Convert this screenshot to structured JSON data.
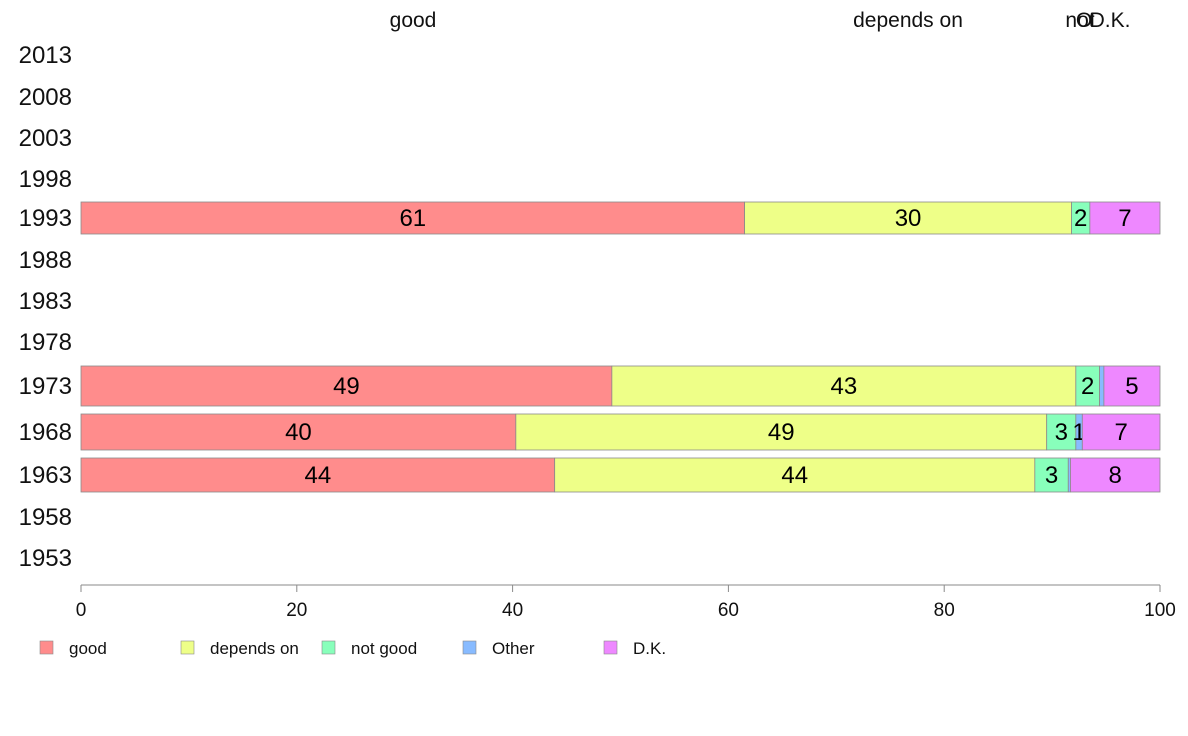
{
  "chart_data": {
    "type": "bar",
    "orientation": "horizontal",
    "stacked": true,
    "years": [
      "2013",
      "2008",
      "2003",
      "1998",
      "1993",
      "1988",
      "1983",
      "1978",
      "1973",
      "1968",
      "1963",
      "1958",
      "1953"
    ],
    "series": [
      {
        "name": "good",
        "color": "#FF8C8C",
        "values": [
          null,
          null,
          null,
          null,
          61.5,
          null,
          null,
          null,
          49.2,
          40.3,
          43.9,
          null,
          null
        ]
      },
      {
        "name": "depends on",
        "color": "#EEFF88",
        "values": [
          null,
          null,
          null,
          null,
          30.3,
          null,
          null,
          null,
          43.0,
          49.2,
          44.5,
          null,
          null
        ]
      },
      {
        "name": "not good",
        "color": "#88FFBB",
        "values": [
          null,
          null,
          null,
          null,
          1.7,
          null,
          null,
          null,
          2.2,
          2.7,
          3.1,
          null,
          null
        ]
      },
      {
        "name": "Other",
        "color": "#88BBFF",
        "values": [
          null,
          null,
          null,
          null,
          0.0,
          null,
          null,
          null,
          0.4,
          0.6,
          0.2,
          null,
          null
        ]
      },
      {
        "name": "D.K.",
        "color": "#EE88FF",
        "values": [
          null,
          null,
          null,
          null,
          6.5,
          null,
          null,
          null,
          5.2,
          7.2,
          8.3,
          null,
          null
        ]
      }
    ],
    "bar_labels": {
      "1993": [
        "61",
        "30",
        "2",
        "",
        "7"
      ],
      "1973": [
        "49",
        "43",
        "2",
        "",
        "5"
      ],
      "1968": [
        "40",
        "49",
        "3",
        "1",
        "7"
      ],
      "1963": [
        "44",
        "44",
        "3",
        "",
        "8"
      ]
    },
    "top_labels": [
      "good",
      "depends on",
      "not",
      "O",
      "D.K."
    ],
    "x_ticks": [
      "0",
      "20",
      "40",
      "60",
      "80",
      "100"
    ],
    "xlim": [
      0,
      100
    ],
    "legend_position": "bottom",
    "grid": false
  }
}
